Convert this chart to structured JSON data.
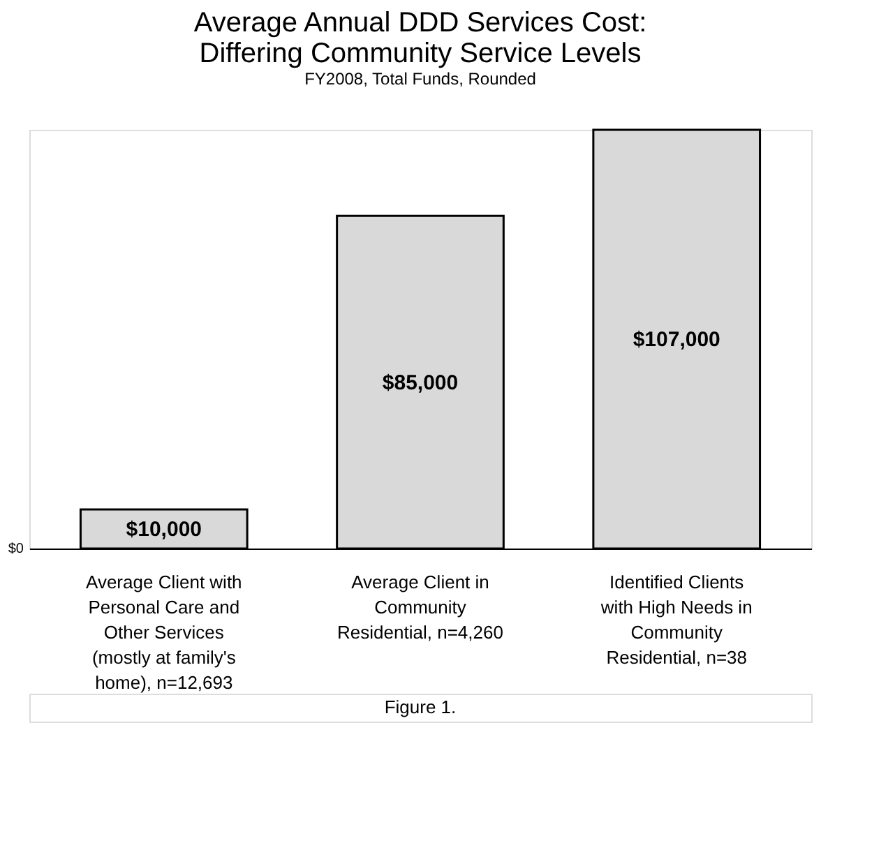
{
  "chart_data": {
    "type": "bar",
    "title": "Average Annual  DDD Services Cost: Differing Community Service Levels",
    "subtitle": "FY2008, Total Funds, Rounded",
    "categories": [
      "Average Client with Personal Care and Other Services (mostly at family's home), n=12,693",
      "Average Client in Community Residential, n=4,260",
      "Identified Clients with High Needs in Community Residential, n=38"
    ],
    "values": [
      10000,
      85000,
      107000
    ],
    "value_labels": [
      "$10,000",
      "$85,000",
      "$107,000"
    ],
    "color": "#d9d9d9",
    "grid": false,
    "annotations": [
      "$0",
      "Figure 1."
    ]
  }
}
